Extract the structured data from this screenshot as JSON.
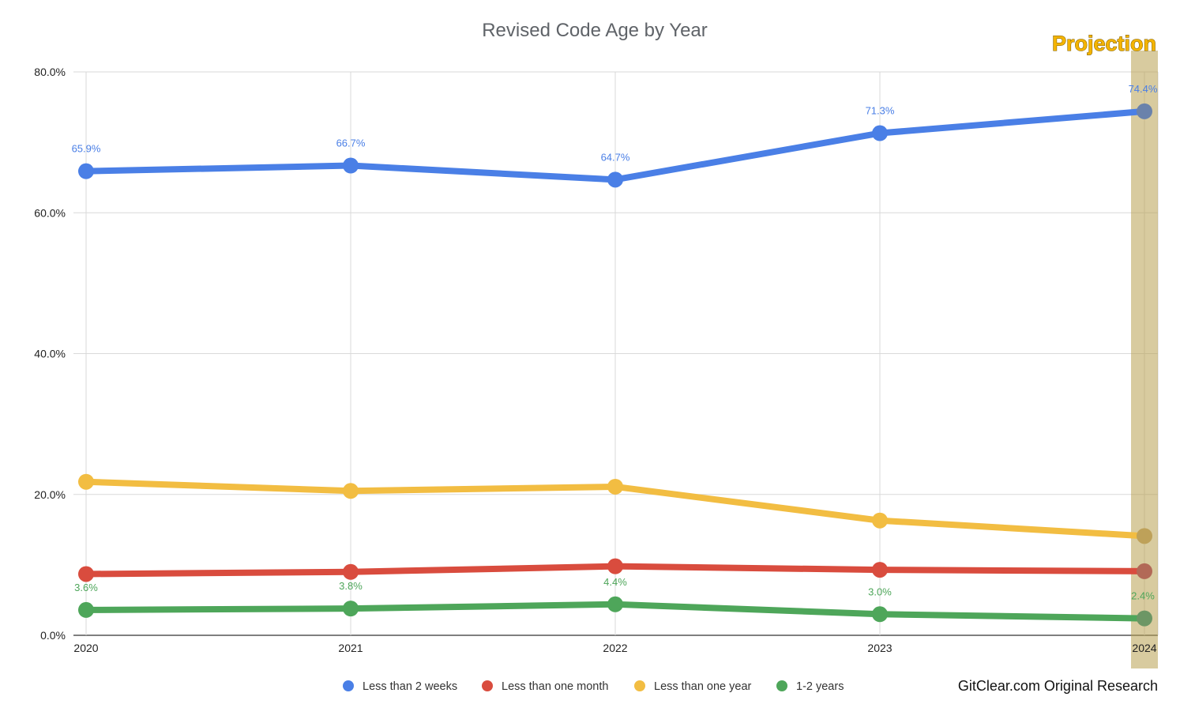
{
  "chart_data": {
    "type": "line",
    "title": "Revised Code Age by Year",
    "categories": [
      "2020",
      "2021",
      "2022",
      "2023",
      "2024"
    ],
    "ylim": [
      0,
      80
    ],
    "yticks": [
      "0.0%",
      "20.0%",
      "40.0%",
      "60.0%",
      "80.0%"
    ],
    "grid": true,
    "legend_position": "bottom",
    "series": [
      {
        "name": "Less than 2 weeks",
        "color": "#4a7fe6",
        "values": [
          65.9,
          66.7,
          64.7,
          71.3,
          74.4
        ],
        "labels": [
          "65.9%",
          "66.7%",
          "64.7%",
          "71.3%",
          "74.4%"
        ]
      },
      {
        "name": "Less than one month",
        "color": "#d94c3e",
        "values": [
          8.7,
          9.0,
          9.8,
          9.3,
          9.1
        ]
      },
      {
        "name": "Less than one year",
        "color": "#f2bd42",
        "values": [
          21.8,
          20.5,
          21.1,
          16.3,
          14.1
        ]
      },
      {
        "name": "1-2 years",
        "color": "#4ea65a",
        "values": [
          3.6,
          3.8,
          4.4,
          3.0,
          2.4
        ],
        "labels": [
          "3.6%",
          "3.8%",
          "4.4%",
          "3.0%",
          "2.4%"
        ]
      }
    ],
    "annotation": "Projection",
    "projection_color": "#b8a050",
    "credit": "GitClear.com Original Research"
  }
}
